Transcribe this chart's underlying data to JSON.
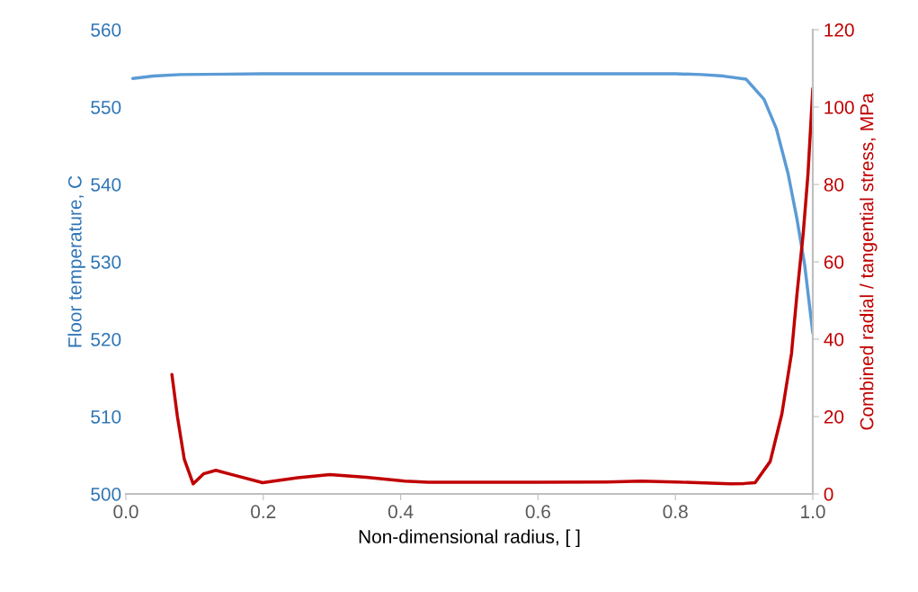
{
  "chart_data": {
    "type": "line",
    "xlabel": "Non-dimensional radius, [ ]",
    "ylabel": "Floor temperature, C",
    "y2label": "Combined radial / tangential stress, MPa",
    "xlim": [
      0,
      1
    ],
    "xticks": [
      {
        "value": 0,
        "label": "0.0"
      },
      0.2,
      0.4,
      0.6,
      0.8,
      {
        "value": 1,
        "label": "1.0"
      }
    ],
    "ylim": [
      500,
      560
    ],
    "yticks": [
      500,
      510,
      520,
      530,
      540,
      550,
      560
    ],
    "y2lim": [
      0,
      120
    ],
    "y2ticks": [
      0,
      20,
      40,
      60,
      80,
      100,
      120
    ],
    "grid": false,
    "legend": false,
    "marker": "none",
    "line_style": "solid",
    "series": [
      {
        "color": "#5b9bd5",
        "x": [
          0.01,
          0.04,
          0.079,
          0.2,
          0.4,
          0.6,
          0.8,
          0.838,
          0.87,
          0.903,
          0.929,
          0.947,
          0.964,
          0.977,
          0.988,
          1.0
        ],
        "values": [
          553.7,
          554.0,
          554.2,
          554.3,
          554.3,
          554.3,
          554.3,
          554.2,
          554.0,
          553.6,
          551.0,
          547.2,
          541.4,
          535.5,
          529.7,
          520.8
        ]
      },
      {
        "color": "#c00000",
        "axis": "y2",
        "x": [
          0.067,
          0.075,
          0.085,
          0.098,
          0.113,
          0.131,
          0.165,
          0.199,
          0.25,
          0.297,
          0.35,
          0.406,
          0.44,
          0.5,
          0.6,
          0.7,
          0.75,
          0.8,
          0.88,
          0.9,
          0.916,
          0.938,
          0.955,
          0.969,
          0.977,
          0.986,
          0.993,
          1.0
        ],
        "values": [
          30.9,
          20,
          9,
          2.6,
          5.2,
          6.1,
          4.5,
          2.9,
          4.2,
          5.0,
          4.3,
          3.3,
          3.0,
          3.0,
          3.0,
          3.1,
          3.3,
          3.1,
          2.6,
          2.7,
          2.9,
          8.4,
          20.7,
          36.3,
          51.7,
          67.2,
          82.7,
          104.8
        ]
      }
    ]
  }
}
